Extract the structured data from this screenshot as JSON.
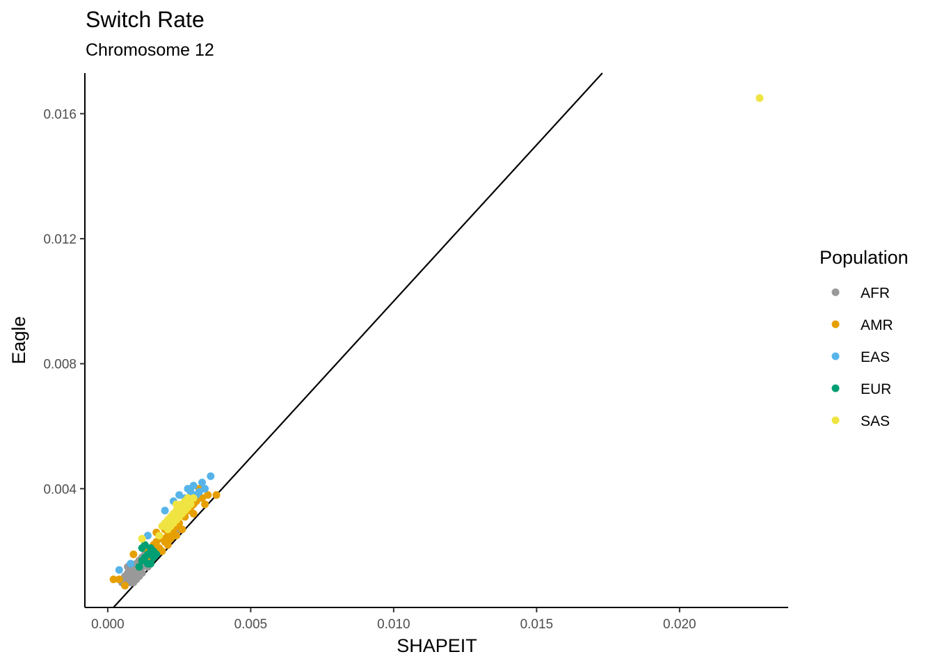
{
  "chart_data": {
    "type": "scatter",
    "title": "Switch Rate",
    "subtitle": "Chromosome 12",
    "xlabel": "SHAPEIT",
    "ylabel": "Eagle",
    "xlim": [
      -0.0008,
      0.0238
    ],
    "ylim": [
      0.0002,
      0.0173
    ],
    "x_ticks": [
      0.0,
      0.005,
      0.01,
      0.015,
      0.02
    ],
    "x_tick_labels": [
      "0.000",
      "0.005",
      "0.010",
      "0.015",
      "0.020"
    ],
    "y_ticks": [
      0.004,
      0.008,
      0.012,
      0.016
    ],
    "y_tick_labels": [
      "0.004",
      "0.008",
      "0.012",
      "0.016"
    ],
    "grid": false,
    "reference_line": {
      "type": "identity",
      "slope": 1,
      "intercept": 0
    },
    "legend": {
      "title": "Population",
      "position": "right"
    },
    "series": [
      {
        "name": "AFR",
        "color": "#999999",
        "points": [
          [
            0.0005,
            0.001
          ],
          [
            0.0006,
            0.0009
          ],
          [
            0.0007,
            0.0011
          ],
          [
            0.0006,
            0.0012
          ],
          [
            0.0008,
            0.001
          ],
          [
            0.0007,
            0.0013
          ],
          [
            0.0008,
            0.0014
          ],
          [
            0.0009,
            0.0012
          ],
          [
            0.0009,
            0.0015
          ],
          [
            0.001,
            0.0013
          ],
          [
            0.001,
            0.0016
          ],
          [
            0.0011,
            0.0014
          ],
          [
            0.0011,
            0.0017
          ],
          [
            0.0012,
            0.0015
          ],
          [
            0.0012,
            0.0018
          ],
          [
            0.0013,
            0.0016
          ],
          [
            0.0013,
            0.0019
          ],
          [
            0.0014,
            0.0017
          ],
          [
            0.0008,
            0.0016
          ],
          [
            0.0007,
            0.0015
          ],
          [
            0.0015,
            0.0018
          ],
          [
            0.001,
            0.0011
          ],
          [
            0.0012,
            0.0013
          ],
          [
            0.0009,
            0.001
          ],
          [
            0.0011,
            0.0012
          ],
          [
            0.0025,
            0.0027
          ],
          [
            0.0014,
            0.0015
          ],
          [
            0.0006,
            0.001
          ]
        ]
      },
      {
        "name": "AMR",
        "color": "#E69F00",
        "points": [
          [
            0.0002,
            0.0011
          ],
          [
            0.0004,
            0.0011
          ],
          [
            0.0006,
            0.0009
          ],
          [
            0.0009,
            0.0019
          ],
          [
            0.0012,
            0.0017
          ],
          [
            0.0015,
            0.002
          ],
          [
            0.0016,
            0.0022
          ],
          [
            0.0017,
            0.0023
          ],
          [
            0.0018,
            0.0021
          ],
          [
            0.0018,
            0.0025
          ],
          [
            0.0019,
            0.0024
          ],
          [
            0.002,
            0.0023
          ],
          [
            0.002,
            0.0027
          ],
          [
            0.0021,
            0.0022
          ],
          [
            0.0021,
            0.0025
          ],
          [
            0.0022,
            0.0026
          ],
          [
            0.0023,
            0.0027
          ],
          [
            0.0024,
            0.0028
          ],
          [
            0.0025,
            0.0029
          ],
          [
            0.0026,
            0.0027
          ],
          [
            0.0027,
            0.0031
          ],
          [
            0.0028,
            0.0033
          ],
          [
            0.0029,
            0.0034
          ],
          [
            0.003,
            0.0032
          ],
          [
            0.0031,
            0.0036
          ],
          [
            0.0032,
            0.004
          ],
          [
            0.0033,
            0.0037
          ],
          [
            0.0034,
            0.0035
          ],
          [
            0.0035,
            0.0038
          ],
          [
            0.0038,
            0.0038
          ],
          [
            0.0015,
            0.0017
          ],
          [
            0.0017,
            0.0026
          ],
          [
            0.0019,
            0.002
          ],
          [
            0.0022,
            0.0024
          ],
          [
            0.003,
            0.0035
          ],
          [
            0.0024,
            0.0025
          ],
          [
            0.0016,
            0.0019
          ],
          [
            0.0013,
            0.0021
          ]
        ]
      },
      {
        "name": "EAS",
        "color": "#56B4E9",
        "points": [
          [
            0.0004,
            0.0014
          ],
          [
            0.0008,
            0.0016
          ],
          [
            0.0014,
            0.0025
          ],
          [
            0.002,
            0.0033
          ],
          [
            0.0023,
            0.0036
          ],
          [
            0.0025,
            0.0038
          ],
          [
            0.0027,
            0.0037
          ],
          [
            0.0028,
            0.004
          ],
          [
            0.0029,
            0.0039
          ],
          [
            0.003,
            0.0041
          ],
          [
            0.0031,
            0.0038
          ],
          [
            0.0032,
            0.0039
          ],
          [
            0.0033,
            0.0042
          ],
          [
            0.0034,
            0.004
          ],
          [
            0.0036,
            0.0044
          ],
          [
            0.0026,
            0.0035
          ]
        ]
      },
      {
        "name": "EUR",
        "color": "#009E73",
        "points": [
          [
            0.0011,
            0.0015
          ],
          [
            0.0012,
            0.0021
          ],
          [
            0.0013,
            0.0018
          ],
          [
            0.0014,
            0.0019
          ],
          [
            0.0015,
            0.0016
          ],
          [
            0.0016,
            0.002
          ],
          [
            0.0017,
            0.0019
          ],
          [
            0.0013,
            0.0022
          ],
          [
            0.0015,
            0.0021
          ],
          [
            0.0012,
            0.0017
          ],
          [
            0.0016,
            0.0018
          ],
          [
            0.0014,
            0.0016
          ]
        ]
      },
      {
        "name": "SAS",
        "color": "#F0E442",
        "points": [
          [
            0.0012,
            0.0024
          ],
          [
            0.0018,
            0.0025
          ],
          [
            0.0019,
            0.0028
          ],
          [
            0.002,
            0.0029
          ],
          [
            0.0021,
            0.003
          ],
          [
            0.0022,
            0.0031
          ],
          [
            0.0022,
            0.0028
          ],
          [
            0.0023,
            0.0032
          ],
          [
            0.0024,
            0.0033
          ],
          [
            0.0024,
            0.003
          ],
          [
            0.0025,
            0.0034
          ],
          [
            0.0025,
            0.0031
          ],
          [
            0.0026,
            0.0035
          ],
          [
            0.0026,
            0.0032
          ],
          [
            0.0027,
            0.0033
          ],
          [
            0.0027,
            0.0036
          ],
          [
            0.0028,
            0.0037
          ],
          [
            0.0028,
            0.0034
          ],
          [
            0.0029,
            0.0035
          ],
          [
            0.0023,
            0.0029
          ],
          [
            0.0021,
            0.0027
          ],
          [
            0.003,
            0.0037
          ],
          [
            0.0024,
            0.0035
          ],
          [
            0.0228,
            0.0165
          ]
        ]
      }
    ]
  }
}
